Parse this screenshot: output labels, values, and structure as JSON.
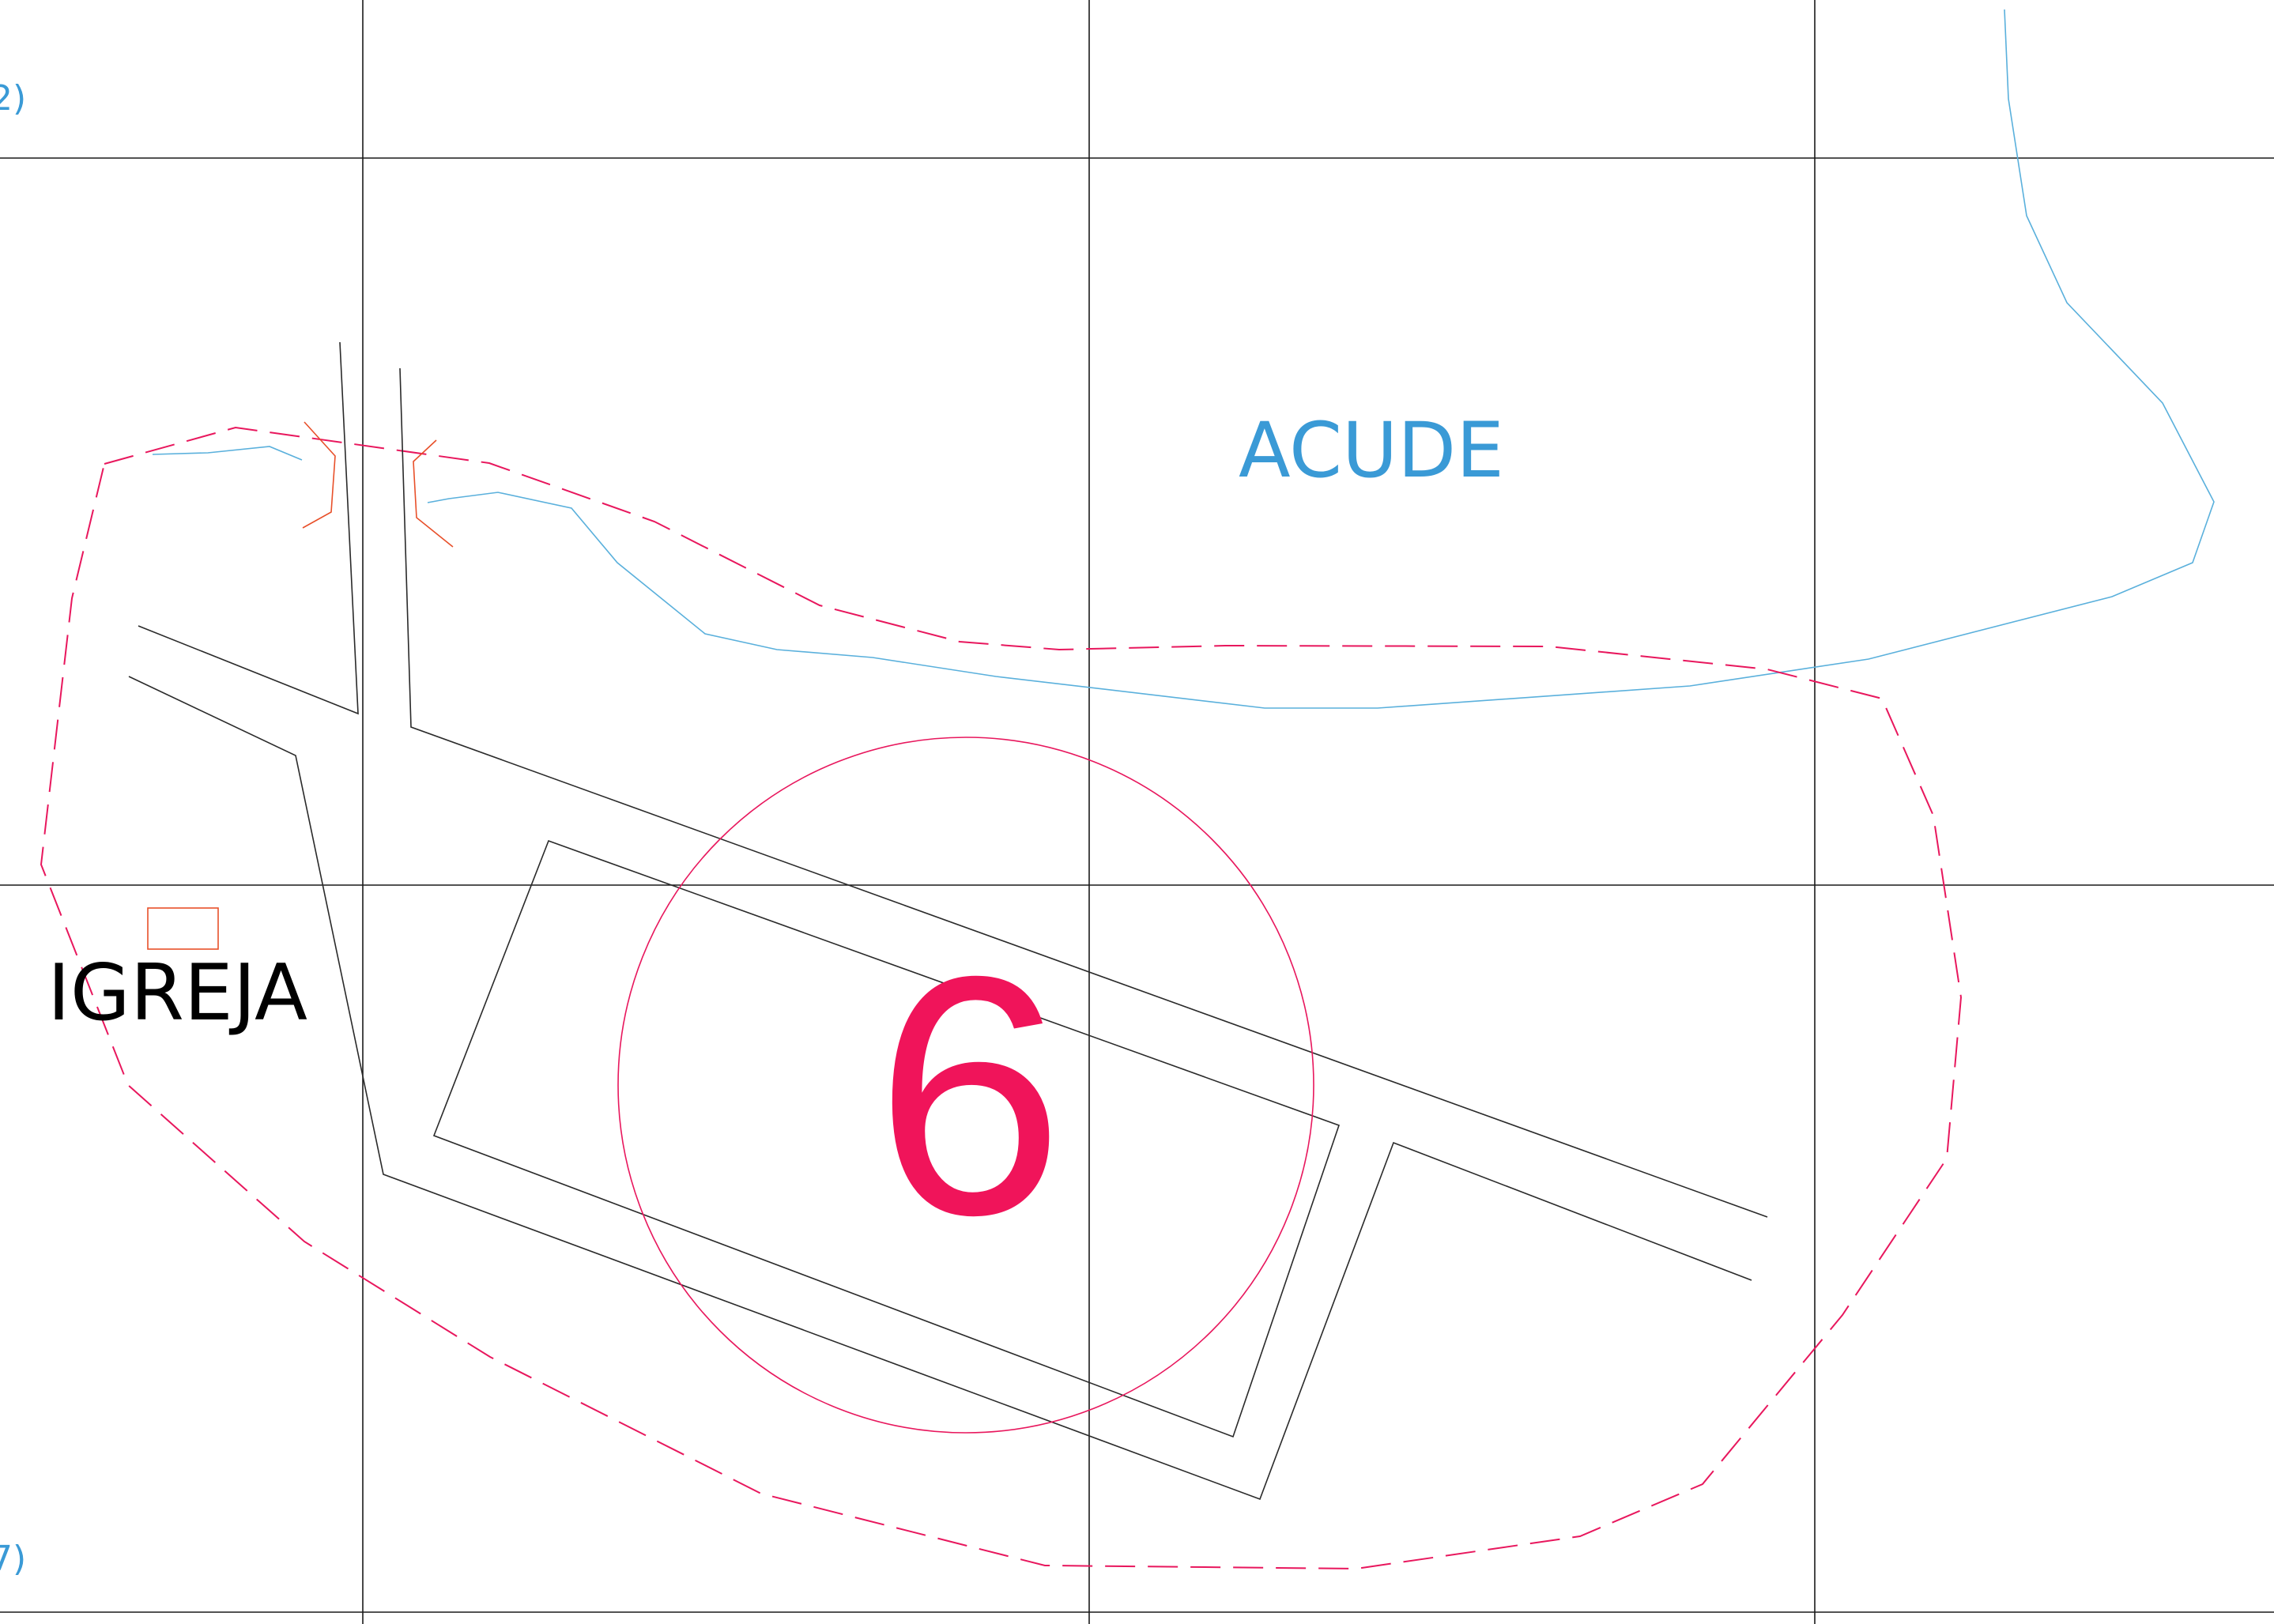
{
  "labels": {
    "water_body": "ACUDE",
    "church": "IGREJA",
    "zone_number": "6",
    "edge_top": "2)",
    "edge_bottom": "7)"
  },
  "colors": {
    "grid": "#1a1a1a",
    "road": "#2a2a2a",
    "water": "#5ab0dc",
    "boundary": "#e8175d",
    "zone_number": "#f0145a",
    "water_label": "#3a9ad6",
    "building": "#e8502a"
  }
}
